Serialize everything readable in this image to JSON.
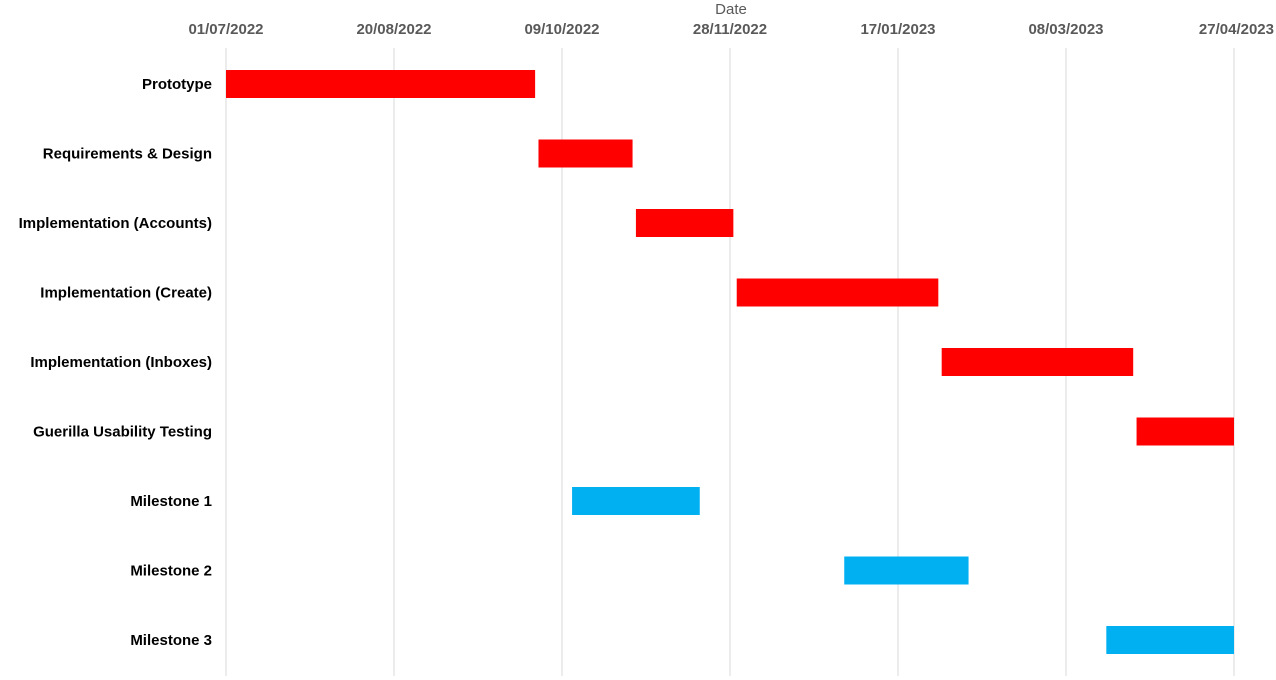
{
  "chart_data": {
    "type": "bar",
    "orientation": "horizontal",
    "subtype": "gantt",
    "title": "",
    "xlabel": "Date",
    "ylabel": "",
    "x_axis_position": "top",
    "x_ticks": [
      "01/07/2022",
      "20/08/2022",
      "09/10/2022",
      "28/11/2022",
      "17/01/2023",
      "08/03/2023",
      "27/04/2023"
    ],
    "xlim": [
      "2022-07-01",
      "2023-04-27"
    ],
    "grid": "vertical",
    "legend": "none",
    "categories": [
      "Prototype",
      "Requirements & Design",
      "Implementation (Accounts)",
      "Implementation (Create)",
      "Implementation (Inboxes)",
      "Guerilla Usability Testing",
      "Milestone 1",
      "Milestone 2",
      "Milestone 3"
    ],
    "tasks": [
      {
        "name": "Prototype",
        "start": "2022-07-01",
        "end": "2022-10-01",
        "kind": "task"
      },
      {
        "name": "Requirements & Design",
        "start": "2022-10-02",
        "end": "2022-10-30",
        "kind": "task"
      },
      {
        "name": "Implementation (Accounts)",
        "start": "2022-10-31",
        "end": "2022-11-29",
        "kind": "task"
      },
      {
        "name": "Implementation (Create)",
        "start": "2022-11-30",
        "end": "2023-01-29",
        "kind": "task"
      },
      {
        "name": "Implementation (Inboxes)",
        "start": "2023-01-30",
        "end": "2023-03-28",
        "kind": "task"
      },
      {
        "name": "Guerilla Usability Testing",
        "start": "2023-03-29",
        "end": "2023-04-27",
        "kind": "task"
      },
      {
        "name": "Milestone 1",
        "start": "2022-10-12",
        "end": "2022-11-19",
        "kind": "milestone"
      },
      {
        "name": "Milestone 2",
        "start": "2023-01-01",
        "end": "2023-02-07",
        "kind": "milestone"
      },
      {
        "name": "Milestone 3",
        "start": "2023-03-20",
        "end": "2023-04-27",
        "kind": "milestone"
      }
    ],
    "colors": {
      "task": "#ff0000",
      "milestone": "#00b0f0",
      "grid": "#d9d9d9",
      "tick_text": "#595959",
      "label_text": "#000000"
    }
  }
}
